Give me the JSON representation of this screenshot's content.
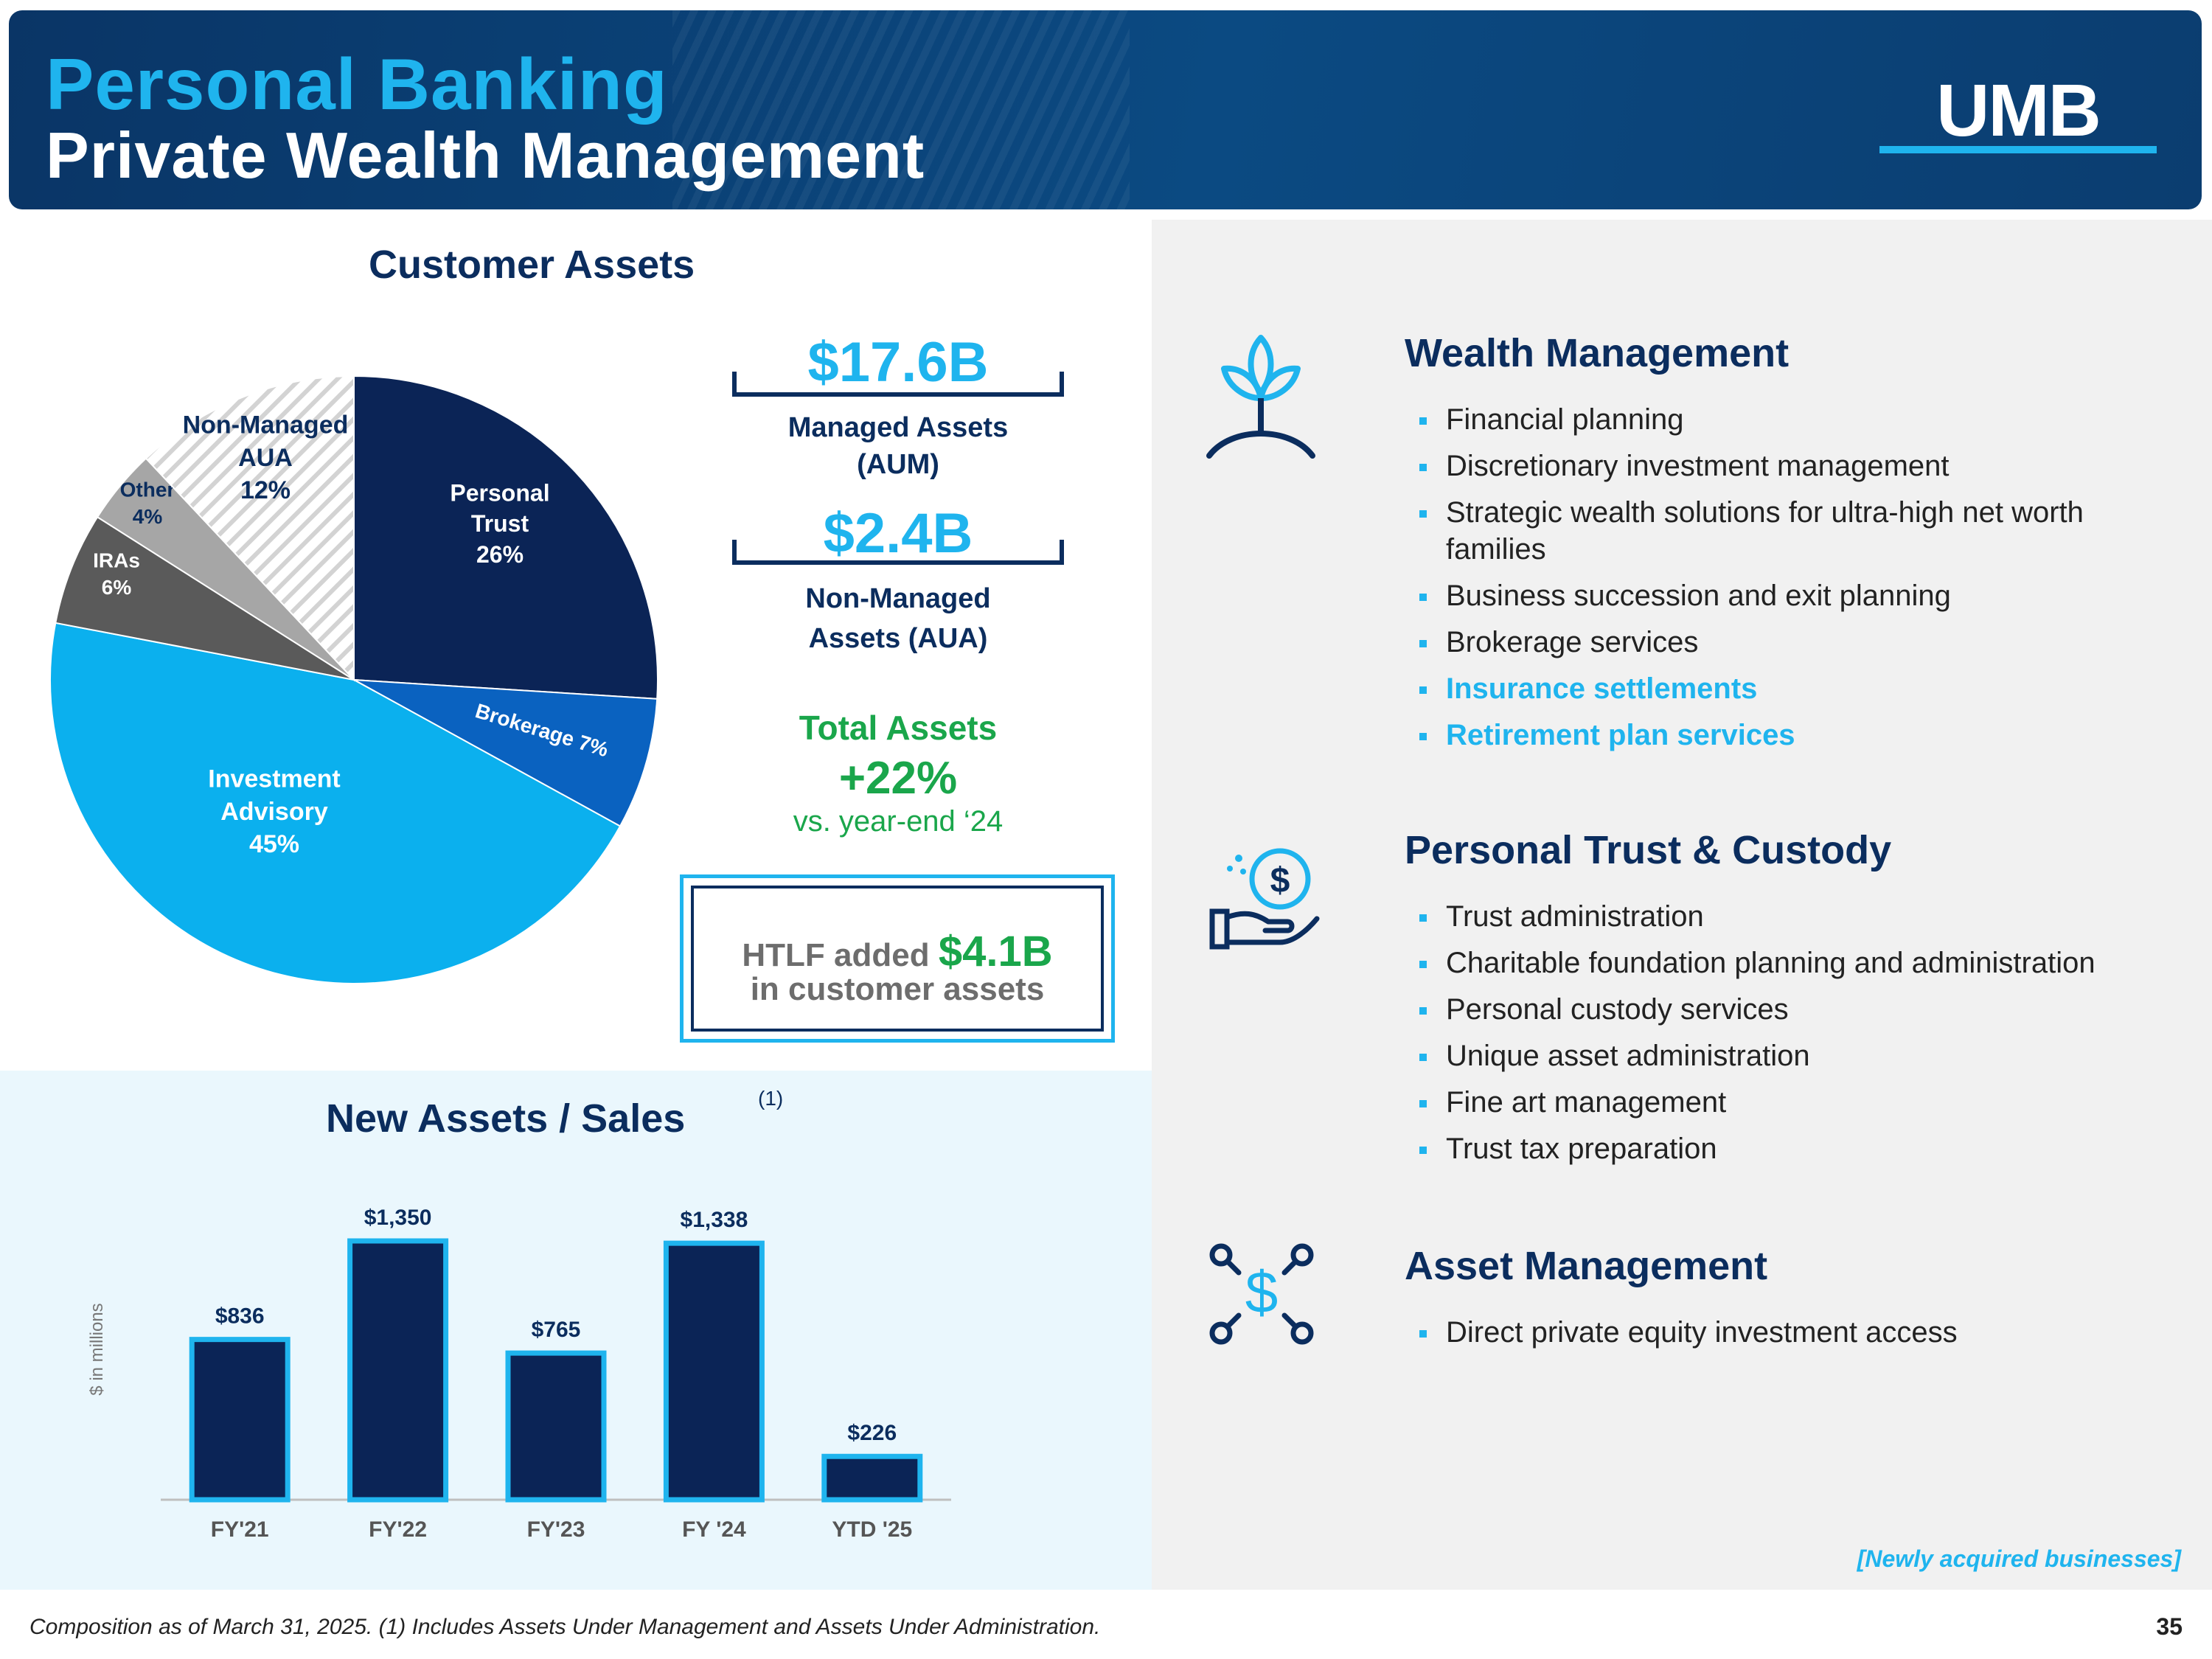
{
  "header": {
    "title_line1": "Personal Banking",
    "title_line2": "Private Wealth Management",
    "logo_text": "UMB"
  },
  "customer_assets": {
    "title": "Customer Assets",
    "managed_value": "$17.6B",
    "managed_label_1": "Managed Assets",
    "managed_label_2": "(AUM)",
    "nonmanaged_value": "$2.4B",
    "nonmanaged_label_1": "Non-Managed",
    "nonmanaged_label_2": "Assets (AUA)",
    "total_title": "Total Assets",
    "total_value": "+22%",
    "total_sub": "vs. year-end ‘24",
    "htlf_prefix": "HTLF added",
    "htlf_amount": "$4.1B",
    "htlf_suffix": "in customer assets"
  },
  "new_assets": {
    "title": "New Assets / Sales",
    "footnote_marker": "(1)",
    "ylabel": "$ in millions"
  },
  "chart_data": [
    {
      "type": "pie",
      "title": "Customer Assets",
      "slices": [
        {
          "label": "Personal Trust",
          "value": 26,
          "display": [
            "Personal",
            "Trust",
            "26%"
          ],
          "color": "#0b2456"
        },
        {
          "label": "Brokerage",
          "value": 7,
          "display": [
            "Brokerage  7%"
          ],
          "color": "#0a62c0"
        },
        {
          "label": "Investment Advisory",
          "value": 45,
          "display": [
            "Investment",
            "Advisory",
            "45%"
          ],
          "color": "#0bb0ee"
        },
        {
          "label": "IRAs",
          "value": 6,
          "display": [
            "IRAs",
            "6%"
          ],
          "color": "#5a5a5a"
        },
        {
          "label": "Other",
          "value": 4,
          "display": [
            "Other",
            "4%"
          ],
          "color": "#a6a6a6"
        },
        {
          "label": "Non-Managed AUA",
          "value": 12,
          "display": [
            "Non-Managed",
            "AUA",
            "12%"
          ],
          "color": "hatch"
        }
      ]
    },
    {
      "type": "bar",
      "title": "New Assets / Sales",
      "ylabel": "$ in millions",
      "categories": [
        "FY'21",
        "FY'22",
        "FY'23",
        "FY '24",
        "YTD '25"
      ],
      "values": [
        836,
        1350,
        765,
        1338,
        226
      ],
      "value_labels": [
        "$836",
        "$1,350",
        "$765",
        "$1,338",
        "$226"
      ],
      "ylim": [
        0,
        1500
      ],
      "bar_color": "#0b2456",
      "bar_outline": "#1fb4ee"
    }
  ],
  "wealth_management": {
    "title": "Wealth Management",
    "icon": "plant-icon",
    "items": [
      "Financial planning",
      "Discretionary investment management",
      "Strategic wealth solutions for ultra-high net worth families",
      "Business succession and exit planning",
      "Brokerage services",
      "Insurance settlements",
      "Retirement plan services"
    ]
  },
  "personal_trust": {
    "title": "Personal Trust & Custody",
    "icon": "hand-money-icon",
    "items": [
      "Trust administration",
      "Charitable foundation planning and administration",
      "Personal custody services",
      "Unique asset administration",
      "Fine art management",
      "Trust tax preparation"
    ]
  },
  "asset_management": {
    "title": "Asset Management",
    "icon": "dollar-network-icon",
    "items": [
      "Direct private equity investment access"
    ]
  },
  "legend_note": "[Newly acquired businesses]",
  "footer": {
    "note": "Composition as of March 31, 2025. (1) Includes Assets Under Management and Assets Under Administration.",
    "page": "35"
  },
  "colors": {
    "navy": "#0b2d5e",
    "accent_blue": "#1fb4ee",
    "green": "#1aa64b"
  }
}
